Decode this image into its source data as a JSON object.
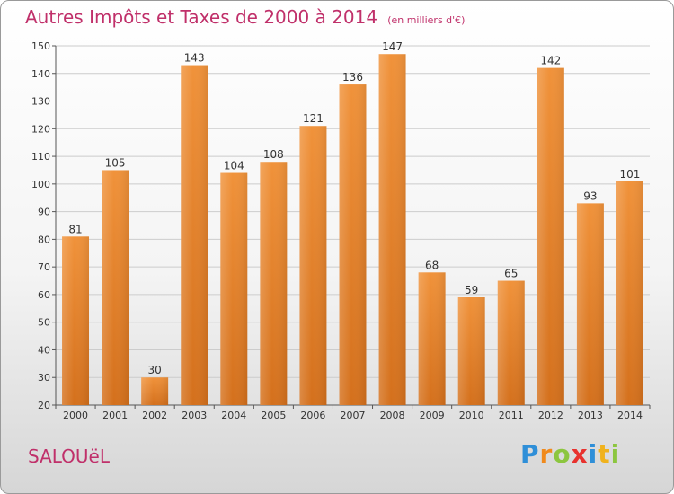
{
  "chart_data": {
    "type": "bar",
    "title": "Autres Impôts et Taxes de 2000 à 2014",
    "subtitle": "(en milliers d'€)",
    "categories": [
      "2000",
      "2001",
      "2002",
      "2003",
      "2004",
      "2005",
      "2006",
      "2007",
      "2008",
      "2009",
      "2010",
      "2011",
      "2012",
      "2013",
      "2014"
    ],
    "values": [
      81,
      105,
      30,
      143,
      104,
      108,
      121,
      136,
      147,
      68,
      59,
      65,
      142,
      93,
      101
    ],
    "ylim": [
      20,
      150
    ],
    "yticks": [
      20,
      30,
      40,
      50,
      60,
      70,
      80,
      90,
      100,
      110,
      120,
      130,
      140,
      150
    ],
    "grid": true,
    "bar_color": "#f0923a",
    "bar_color_dark": "#d4701c",
    "grid_color": "#cccccc"
  },
  "commune": "SALOUëL",
  "logo": {
    "letters": [
      "P",
      "r",
      "o",
      "x",
      "i",
      "t",
      "i"
    ],
    "colors": [
      "#2f8fd8",
      "#f08a1c",
      "#8cc63f",
      "#e8322e",
      "#2f8fd8",
      "#f0b21c",
      "#8cc63f"
    ]
  }
}
